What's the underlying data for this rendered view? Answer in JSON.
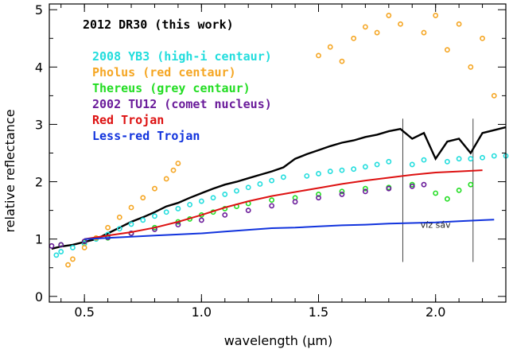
{
  "chart_data": {
    "type": "scatter",
    "xlabel": "wavelength (μm)",
    "ylabel": "relative reflectance",
    "xlim": [
      0.35,
      2.3
    ],
    "ylim": [
      -0.1,
      5.1
    ],
    "xticks": [
      "0.5",
      "1.0",
      "1.5",
      "2.0"
    ],
    "xtick_values": [
      0.5,
      1.0,
      1.5,
      2.0
    ],
    "yticks": [
      "0",
      "1",
      "2",
      "3",
      "4",
      "5"
    ],
    "ytick_values": [
      0,
      1,
      2,
      3,
      4,
      5
    ],
    "grid": false,
    "legend_position": "top-left",
    "series": [
      {
        "name": "2012 DR30 (this work)",
        "color": "#000000",
        "style": "line",
        "points": [
          [
            0.36,
            0.83
          ],
          [
            0.4,
            0.87
          ],
          [
            0.45,
            0.9
          ],
          [
            0.5,
            0.95
          ],
          [
            0.55,
            1.0
          ],
          [
            0.6,
            1.1
          ],
          [
            0.65,
            1.2
          ],
          [
            0.7,
            1.3
          ],
          [
            0.75,
            1.38
          ],
          [
            0.8,
            1.47
          ],
          [
            0.85,
            1.57
          ],
          [
            0.9,
            1.63
          ],
          [
            0.95,
            1.72
          ],
          [
            1.0,
            1.8
          ],
          [
            1.05,
            1.88
          ],
          [
            1.1,
            1.95
          ],
          [
            1.15,
            2.0
          ],
          [
            1.2,
            2.06
          ],
          [
            1.25,
            2.12
          ],
          [
            1.3,
            2.18
          ],
          [
            1.35,
            2.25
          ],
          [
            1.4,
            2.4
          ],
          [
            1.45,
            2.48
          ],
          [
            1.5,
            2.55
          ],
          [
            1.55,
            2.62
          ],
          [
            1.6,
            2.68
          ],
          [
            1.65,
            2.72
          ],
          [
            1.7,
            2.78
          ],
          [
            1.75,
            2.82
          ],
          [
            1.8,
            2.88
          ],
          [
            1.85,
            2.92
          ],
          [
            1.9,
            2.75
          ],
          [
            1.95,
            2.85
          ],
          [
            2.0,
            2.4
          ],
          [
            2.05,
            2.7
          ],
          [
            2.1,
            2.75
          ],
          [
            2.15,
            2.5
          ],
          [
            2.2,
            2.85
          ],
          [
            2.25,
            2.9
          ],
          [
            2.3,
            2.95
          ]
        ]
      },
      {
        "name": "2008 YB3 (high-i centaur)",
        "color": "#22dddd",
        "style": "points",
        "points": [
          [
            0.38,
            0.72
          ],
          [
            0.4,
            0.78
          ],
          [
            0.45,
            0.85
          ],
          [
            0.5,
            0.92
          ],
          [
            0.55,
            1.0
          ],
          [
            0.6,
            1.08
          ],
          [
            0.65,
            1.18
          ],
          [
            0.7,
            1.26
          ],
          [
            0.75,
            1.33
          ],
          [
            0.8,
            1.4
          ],
          [
            0.85,
            1.47
          ],
          [
            0.9,
            1.53
          ],
          [
            0.95,
            1.6
          ],
          [
            1.0,
            1.66
          ],
          [
            1.05,
            1.72
          ],
          [
            1.1,
            1.78
          ],
          [
            1.15,
            1.84
          ],
          [
            1.2,
            1.9
          ],
          [
            1.25,
            1.96
          ],
          [
            1.3,
            2.02
          ],
          [
            1.35,
            2.08
          ],
          [
            1.45,
            2.1
          ],
          [
            1.5,
            2.14
          ],
          [
            1.55,
            2.18
          ],
          [
            1.6,
            2.2
          ],
          [
            1.65,
            2.22
          ],
          [
            1.7,
            2.26
          ],
          [
            1.75,
            2.3
          ],
          [
            1.8,
            2.35
          ],
          [
            1.9,
            2.3
          ],
          [
            1.95,
            2.38
          ],
          [
            2.05,
            2.35
          ],
          [
            2.1,
            2.4
          ],
          [
            2.15,
            2.4
          ],
          [
            2.2,
            2.42
          ],
          [
            2.25,
            2.45
          ],
          [
            2.3,
            2.45
          ]
        ]
      },
      {
        "name": "Pholus (red centaur)",
        "color": "#f5a623",
        "style": "points",
        "points": [
          [
            0.43,
            0.55
          ],
          [
            0.45,
            0.65
          ],
          [
            0.5,
            0.85
          ],
          [
            0.55,
            1.02
          ],
          [
            0.6,
            1.2
          ],
          [
            0.65,
            1.38
          ],
          [
            0.7,
            1.55
          ],
          [
            0.75,
            1.72
          ],
          [
            0.8,
            1.88
          ],
          [
            0.85,
            2.05
          ],
          [
            0.88,
            2.2
          ],
          [
            0.9,
            2.32
          ],
          [
            1.5,
            4.2
          ],
          [
            1.55,
            4.35
          ],
          [
            1.6,
            4.1
          ],
          [
            1.65,
            4.5
          ],
          [
            1.7,
            4.7
          ],
          [
            1.75,
            4.6
          ],
          [
            1.8,
            4.9
          ],
          [
            1.85,
            4.75
          ],
          [
            1.95,
            4.6
          ],
          [
            2.0,
            4.9
          ],
          [
            2.05,
            4.3
          ],
          [
            2.1,
            4.75
          ],
          [
            2.15,
            4.0
          ],
          [
            2.2,
            4.5
          ],
          [
            2.25,
            3.5
          ]
        ]
      },
      {
        "name": "Thereus (grey centaur)",
        "color": "#22dd22",
        "style": "points",
        "points": [
          [
            0.4,
            0.9
          ],
          [
            0.5,
            0.95
          ],
          [
            0.6,
            1.02
          ],
          [
            0.7,
            1.1
          ],
          [
            0.8,
            1.2
          ],
          [
            0.9,
            1.3
          ],
          [
            0.95,
            1.35
          ],
          [
            1.0,
            1.42
          ],
          [
            1.05,
            1.47
          ],
          [
            1.1,
            1.53
          ],
          [
            1.15,
            1.57
          ],
          [
            1.2,
            1.62
          ],
          [
            1.3,
            1.68
          ],
          [
            1.4,
            1.72
          ],
          [
            1.5,
            1.78
          ],
          [
            1.6,
            1.83
          ],
          [
            1.7,
            1.88
          ],
          [
            1.8,
            1.9
          ],
          [
            1.9,
            1.95
          ],
          [
            2.0,
            1.8
          ],
          [
            2.05,
            1.7
          ],
          [
            2.1,
            1.85
          ],
          [
            2.15,
            1.95
          ]
        ]
      },
      {
        "name": "2002 TU12 (comet nucleus)",
        "color": "#6a1b9a",
        "style": "points",
        "points": [
          [
            0.36,
            0.88
          ],
          [
            0.4,
            0.9
          ],
          [
            0.5,
            0.96
          ],
          [
            0.6,
            1.03
          ],
          [
            0.7,
            1.1
          ],
          [
            0.8,
            1.17
          ],
          [
            0.9,
            1.25
          ],
          [
            1.0,
            1.33
          ],
          [
            1.1,
            1.42
          ],
          [
            1.2,
            1.5
          ],
          [
            1.3,
            1.58
          ],
          [
            1.4,
            1.65
          ],
          [
            1.5,
            1.72
          ],
          [
            1.6,
            1.78
          ],
          [
            1.7,
            1.83
          ],
          [
            1.8,
            1.88
          ],
          [
            1.9,
            1.92
          ],
          [
            1.95,
            1.95
          ]
        ]
      },
      {
        "name": "Red Trojan",
        "color": "#dd1111",
        "style": "line",
        "points": [
          [
            0.5,
            1.0
          ],
          [
            0.6,
            1.06
          ],
          [
            0.7,
            1.12
          ],
          [
            0.8,
            1.2
          ],
          [
            0.9,
            1.3
          ],
          [
            1.0,
            1.42
          ],
          [
            1.1,
            1.55
          ],
          [
            1.2,
            1.66
          ],
          [
            1.3,
            1.75
          ],
          [
            1.4,
            1.82
          ],
          [
            1.5,
            1.89
          ],
          [
            1.6,
            1.96
          ],
          [
            1.7,
            2.02
          ],
          [
            1.8,
            2.07
          ],
          [
            1.9,
            2.12
          ],
          [
            2.0,
            2.16
          ],
          [
            2.1,
            2.18
          ],
          [
            2.2,
            2.2
          ]
        ]
      },
      {
        "name": "Less-red Trojan",
        "color": "#1133dd",
        "style": "line",
        "points": [
          [
            0.5,
            1.0
          ],
          [
            0.6,
            1.02
          ],
          [
            0.7,
            1.04
          ],
          [
            0.8,
            1.06
          ],
          [
            0.9,
            1.08
          ],
          [
            1.0,
            1.1
          ],
          [
            1.1,
            1.13
          ],
          [
            1.2,
            1.16
          ],
          [
            1.3,
            1.19
          ],
          [
            1.4,
            1.2
          ],
          [
            1.5,
            1.22
          ],
          [
            1.6,
            1.24
          ],
          [
            1.7,
            1.25
          ],
          [
            1.8,
            1.27
          ],
          [
            1.9,
            1.28
          ],
          [
            2.0,
            1.29
          ],
          [
            2.1,
            1.31
          ],
          [
            2.2,
            1.33
          ],
          [
            2.25,
            1.34
          ]
        ]
      }
    ],
    "annotations": [
      {
        "text": "víz sáv",
        "x": 2.0,
        "y": 1.2
      }
    ],
    "vlines": [
      1.86,
      2.16
    ]
  }
}
